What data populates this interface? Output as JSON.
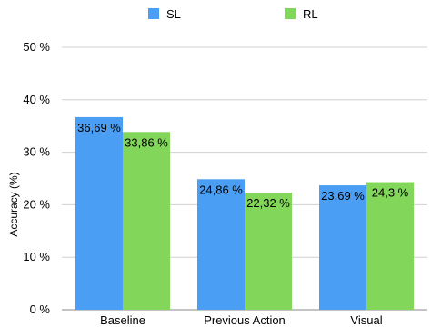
{
  "chart_data": {
    "type": "bar",
    "categories": [
      "Baseline",
      "Previous Action",
      "Visual"
    ],
    "series": [
      {
        "name": "SL",
        "color": "#4a9ff5",
        "values": [
          36.69,
          24.86,
          23.69
        ],
        "labels": [
          "36,69 %",
          "24,86 %",
          "23,69 %"
        ]
      },
      {
        "name": "RL",
        "color": "#82d65a",
        "values": [
          33.86,
          22.32,
          24.3
        ],
        "labels": [
          "33,86 %",
          "22,32 %",
          "24,3 %"
        ]
      }
    ],
    "ylabel": "Accuracy (%)",
    "ylim": [
      0,
      50
    ],
    "yticks": [
      0,
      10,
      20,
      30,
      40,
      50
    ],
    "ytick_labels": [
      "0 %",
      "10 %",
      "20 %",
      "30 %",
      "40 %",
      "50 %"
    ],
    "grid": true,
    "legend_position": "top"
  }
}
